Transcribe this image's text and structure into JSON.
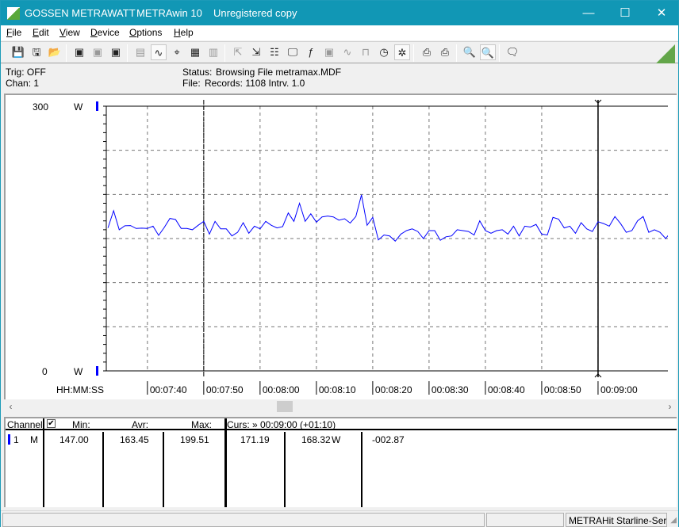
{
  "title": {
    "brand": "GOSSEN METRAWATT",
    "app": "METRAwin 10",
    "note": "Unregistered copy",
    "minimize": "—",
    "maximize": "☐",
    "close": "✕"
  },
  "menu": [
    "File",
    "Edit",
    "View",
    "Device",
    "Options",
    "Help"
  ],
  "toolbar": [
    {
      "icon": "save-icon",
      "g": "💾"
    },
    {
      "icon": "save-as-icon",
      "g": "🖫"
    },
    {
      "icon": "open-folder-icon",
      "g": "📂"
    },
    {
      "sep": true
    },
    {
      "icon": "device-read-icon",
      "g": "▣"
    },
    {
      "icon": "device-transfer-icon",
      "g": "▣",
      "disabled": true
    },
    {
      "icon": "device-memory-icon",
      "g": "▣"
    },
    {
      "sep": true
    },
    {
      "icon": "digital-display-icon",
      "g": "▤",
      "disabled": true
    },
    {
      "icon": "waveform-view-icon",
      "g": "∿",
      "active": true
    },
    {
      "icon": "crosshair-icon",
      "g": "⌖"
    },
    {
      "icon": "table-view-icon",
      "g": "▦"
    },
    {
      "icon": "histogram-icon",
      "g": "▥",
      "disabled": true
    },
    {
      "sep": true
    },
    {
      "icon": "export-icon",
      "g": "⇱",
      "disabled": true
    },
    {
      "icon": "import-icon",
      "g": "⇲"
    },
    {
      "icon": "channel-settings-icon",
      "g": "☷"
    },
    {
      "icon": "monitor-icon",
      "g": "🖵"
    },
    {
      "icon": "function-icon",
      "g": "ƒ"
    },
    {
      "icon": "meter-settings-icon",
      "g": "▣",
      "disabled": true
    },
    {
      "icon": "trigger-icon",
      "g": "∿",
      "disabled": true
    },
    {
      "icon": "sampling-icon",
      "g": "⊓",
      "disabled": true
    },
    {
      "icon": "timer-icon",
      "g": "◷"
    },
    {
      "icon": "bug-icon",
      "g": "✲",
      "active": true
    },
    {
      "sep": true
    },
    {
      "icon": "print-preview-icon",
      "g": "⎙"
    },
    {
      "icon": "print-icon",
      "g": "⎙"
    },
    {
      "sep": true
    },
    {
      "icon": "zoom-all-icon",
      "g": "🔍"
    },
    {
      "icon": "zoom-curve-icon",
      "g": "🔍",
      "active": true
    },
    {
      "sep": true
    },
    {
      "icon": "comment-icon",
      "g": "🗨"
    }
  ],
  "info": {
    "trig": "Trig: OFF",
    "chan": "Chan:  1",
    "status_label": "Status:",
    "status_value": "Browsing File metramax.MDF",
    "file_label": "File:",
    "file_value": "Records: 1108  Intrv. 1.0"
  },
  "colors": {
    "title_bar": "#1197b5",
    "series": "#0000ff",
    "accent": "#63a64a"
  },
  "chart_data": {
    "type": "line",
    "y_top_label": "300",
    "y_bottom_label": "0",
    "y_unit": "W",
    "ylim": [
      0,
      300
    ],
    "x_axis_label": "HH:MM:SS",
    "xlim": [
      "00:07:32.7",
      "00:09:12.4"
    ],
    "x_ticks": [
      "00:07:40",
      "00:07:50",
      "00:08:00",
      "00:08:10",
      "00:08:20",
      "00:08:30",
      "00:08:40",
      "00:08:50",
      "00:09:00"
    ],
    "grid": true,
    "cursors": [
      "00:07:50",
      "00:09:00"
    ],
    "start": "00:07:33",
    "interval_s": 1,
    "values": [
      162,
      181.5,
      160,
      164.5,
      164.7,
      161.4,
      161.8,
      161.4,
      164,
      153.6,
      162.6,
      172.8,
      171.6,
      161.4,
      161.4,
      160,
      165,
      169.5,
      155,
      169.5,
      161,
      161,
      153,
      157,
      168,
      156,
      164,
      161,
      169.5,
      165,
      162,
      163.5,
      179,
      169.5,
      190,
      169.5,
      178,
      168.5,
      174.5,
      175.5,
      174.5,
      170.8,
      172.5,
      167.5,
      175,
      199.5,
      165,
      174,
      148.5,
      154,
      153,
      147,
      155,
      159,
      161,
      158,
      150,
      159,
      159,
      148,
      152,
      153,
      160,
      159,
      158,
      154,
      170,
      159,
      156,
      159,
      160,
      155,
      164,
      153,
      164,
      163,
      166,
      155,
      154,
      174,
      172,
      162,
      164,
      156,
      168,
      161,
      158,
      169,
      167,
      164,
      175,
      167,
      157,
      159,
      170,
      175,
      157,
      160,
      157,
      150,
      158
    ]
  },
  "table": {
    "headers": {
      "channel": "Channel:",
      "min": "Min:",
      "avr": "Avr:",
      "max": "Max:",
      "cursor": "Curs: » 00:09:00 (+01:10)"
    },
    "checkbox_checked": true,
    "rows": [
      {
        "channel": "1",
        "mode": "M",
        "min": "147.00",
        "avr": "163.45",
        "max": "199.51",
        "c1": "171.19",
        "c2": "168.32",
        "unit": "W",
        "diff": "-002.87"
      }
    ]
  },
  "statusbar": {
    "device": "METRAHit Starline-Seri"
  }
}
